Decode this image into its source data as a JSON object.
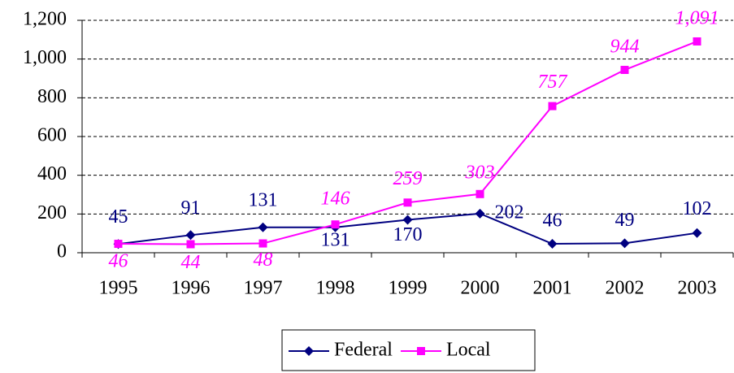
{
  "chart_data": {
    "type": "line",
    "categories": [
      "1995",
      "1996",
      "1997",
      "1998",
      "1999",
      "2000",
      "2001",
      "2002",
      "2003"
    ],
    "series": [
      {
        "name": "Federal",
        "color": "#000080",
        "marker": "diamond",
        "values": [
          45,
          91,
          131,
          131,
          170,
          202,
          46,
          49,
          102
        ]
      },
      {
        "name": "Local",
        "color": "#ff00ff",
        "marker": "square",
        "values": [
          46,
          44,
          48,
          146,
          259,
          303,
          757,
          944,
          1091
        ],
        "value_labels": [
          "46",
          "44",
          "48",
          "146",
          "259",
          "303",
          "757",
          "944",
          "1,091"
        ]
      }
    ],
    "ylim": [
      0,
      1200
    ],
    "yticks": [
      0,
      200,
      400,
      600,
      800,
      {
        "value": 1000,
        "label": "1,000"
      },
      {
        "value": 1200,
        "label": "1,200"
      }
    ],
    "grid": true,
    "legend": "bottom"
  }
}
